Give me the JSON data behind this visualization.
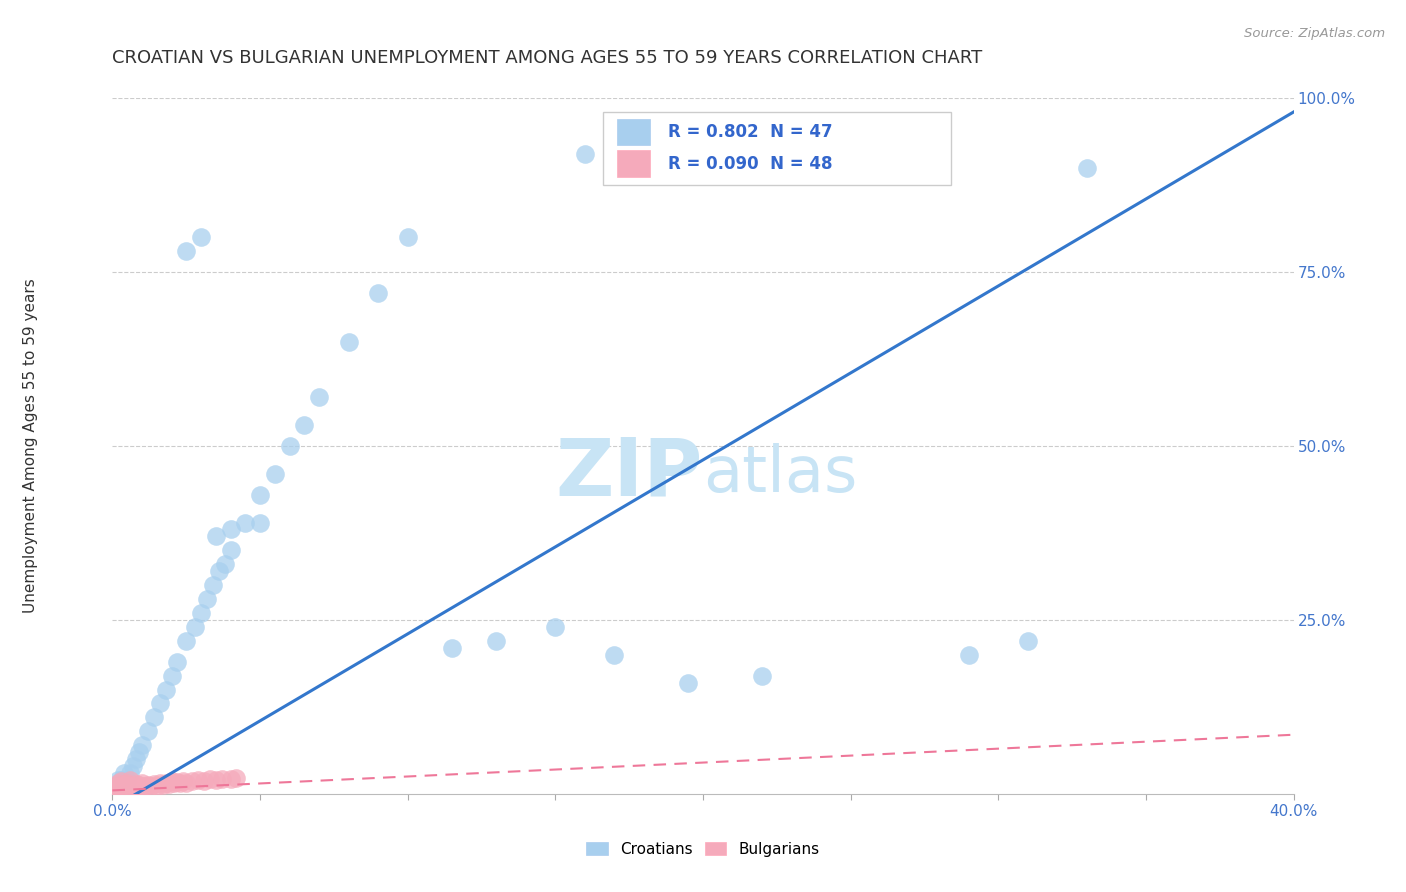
{
  "title": "CROATIAN VS BULGARIAN UNEMPLOYMENT AMONG AGES 55 TO 59 YEARS CORRELATION CHART",
  "source": "Source: ZipAtlas.com",
  "ylabel_label": "Unemployment Among Ages 55 to 59 years",
  "legend_entries": [
    "Croatians",
    "Bulgarians"
  ],
  "r_croatian": 0.802,
  "n_croatian": 47,
  "r_bulgarian": 0.09,
  "n_bulgarian": 48,
  "blue_color": "#A8CFEE",
  "pink_color": "#F5AABB",
  "blue_line_color": "#3377CC",
  "pink_line_color": "#EE7799",
  "background_color": "#FFFFFF",
  "watermark_color": "#C8E4F5",
  "title_fontsize": 13,
  "axis_label_fontsize": 11,
  "tick_fontsize": 11,
  "xlim": [
    0.0,
    0.4
  ],
  "ylim": [
    0.0,
    1.0
  ],
  "croatian_x": [
    0.002,
    0.003,
    0.004,
    0.005,
    0.006,
    0.007,
    0.008,
    0.009,
    0.01,
    0.012,
    0.014,
    0.016,
    0.018,
    0.02,
    0.022,
    0.025,
    0.028,
    0.03,
    0.032,
    0.034,
    0.036,
    0.038,
    0.04,
    0.045,
    0.05,
    0.055,
    0.06,
    0.065,
    0.07,
    0.08,
    0.09,
    0.1,
    0.115,
    0.13,
    0.15,
    0.17,
    0.195,
    0.22,
    0.025,
    0.03,
    0.035,
    0.04,
    0.05,
    0.16,
    0.29,
    0.31,
    0.33
  ],
  "croatian_y": [
    0.02,
    0.02,
    0.03,
    0.02,
    0.03,
    0.04,
    0.05,
    0.06,
    0.07,
    0.09,
    0.11,
    0.13,
    0.15,
    0.17,
    0.19,
    0.22,
    0.24,
    0.26,
    0.28,
    0.3,
    0.32,
    0.33,
    0.35,
    0.39,
    0.43,
    0.46,
    0.5,
    0.53,
    0.57,
    0.65,
    0.72,
    0.8,
    0.21,
    0.22,
    0.24,
    0.2,
    0.16,
    0.17,
    0.78,
    0.8,
    0.37,
    0.38,
    0.39,
    0.92,
    0.2,
    0.22,
    0.9
  ],
  "bulgarian_x": [
    0.001,
    0.001,
    0.002,
    0.002,
    0.002,
    0.003,
    0.003,
    0.003,
    0.003,
    0.004,
    0.004,
    0.005,
    0.005,
    0.005,
    0.006,
    0.006,
    0.006,
    0.007,
    0.007,
    0.008,
    0.008,
    0.009,
    0.009,
    0.01,
    0.01,
    0.011,
    0.012,
    0.013,
    0.014,
    0.015,
    0.016,
    0.017,
    0.018,
    0.019,
    0.02,
    0.021,
    0.022,
    0.023,
    0.024,
    0.025,
    0.027,
    0.029,
    0.031,
    0.033,
    0.035,
    0.037,
    0.04,
    0.042
  ],
  "bulgarian_y": [
    0.008,
    0.012,
    0.006,
    0.01,
    0.015,
    0.005,
    0.009,
    0.013,
    0.018,
    0.007,
    0.011,
    0.006,
    0.01,
    0.016,
    0.008,
    0.013,
    0.02,
    0.007,
    0.012,
    0.009,
    0.014,
    0.008,
    0.013,
    0.01,
    0.016,
    0.011,
    0.013,
    0.012,
    0.014,
    0.011,
    0.015,
    0.013,
    0.016,
    0.014,
    0.018,
    0.015,
    0.017,
    0.016,
    0.019,
    0.015,
    0.018,
    0.02,
    0.019,
    0.021,
    0.02,
    0.022,
    0.021,
    0.023
  ],
  "blue_trendline_x": [
    0.0,
    0.4
  ],
  "blue_trendline_y": [
    -0.02,
    0.98
  ],
  "pink_trendline_x": [
    0.0,
    0.4
  ],
  "pink_trendline_y": [
    0.005,
    0.085
  ]
}
